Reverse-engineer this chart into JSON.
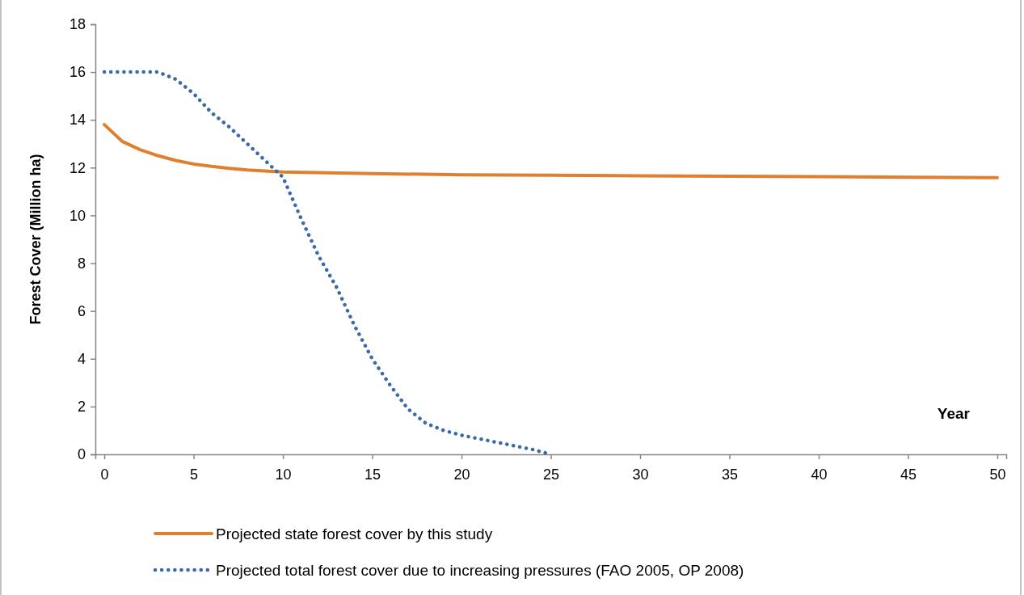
{
  "chart_data": {
    "type": "line",
    "ylabel": "Forest Cover (Million ha)",
    "xlabel": "Year",
    "xlim": [
      -0.5,
      50.5
    ],
    "xticks": [
      0,
      5,
      10,
      15,
      20,
      25,
      30,
      35,
      40,
      45,
      50
    ],
    "ylim": [
      0,
      18
    ],
    "yticks": [
      0,
      2,
      4,
      6,
      8,
      10,
      12,
      14,
      16,
      18
    ],
    "grid": false,
    "legend": "bottom",
    "marker": "none",
    "series": [
      {
        "name": "Projected state forest cover by this study",
        "color": "#e07f2e",
        "line_style": "solid",
        "x": [
          0,
          1,
          2,
          3,
          4,
          5,
          6,
          7,
          8,
          9,
          10,
          15,
          20,
          25,
          30,
          35,
          40,
          45,
          50
        ],
        "values": [
          13.8,
          13.1,
          12.75,
          12.5,
          12.3,
          12.15,
          12.05,
          11.97,
          11.9,
          11.86,
          11.82,
          11.75,
          11.7,
          11.68,
          11.66,
          11.64,
          11.62,
          11.6,
          11.58
        ]
      },
      {
        "name": "Projected total forest cover due to increasing pressures (FAO 2005, OP 2008)",
        "color": "#3a6aa8",
        "line_style": "dotted",
        "x": [
          0,
          1,
          2,
          3,
          4,
          5,
          6,
          7,
          8,
          9,
          10,
          11,
          12,
          13,
          14,
          15,
          16,
          17,
          18,
          19,
          20,
          21,
          22,
          23,
          24,
          25
        ],
        "values": [
          16,
          16,
          16,
          16,
          15.7,
          15.1,
          14.3,
          13.7,
          13.0,
          12.3,
          11.6,
          9.9,
          8.3,
          7.0,
          5.4,
          4.0,
          2.9,
          1.9,
          1.3,
          1.0,
          0.8,
          0.65,
          0.5,
          0.35,
          0.2,
          0
        ]
      }
    ]
  }
}
